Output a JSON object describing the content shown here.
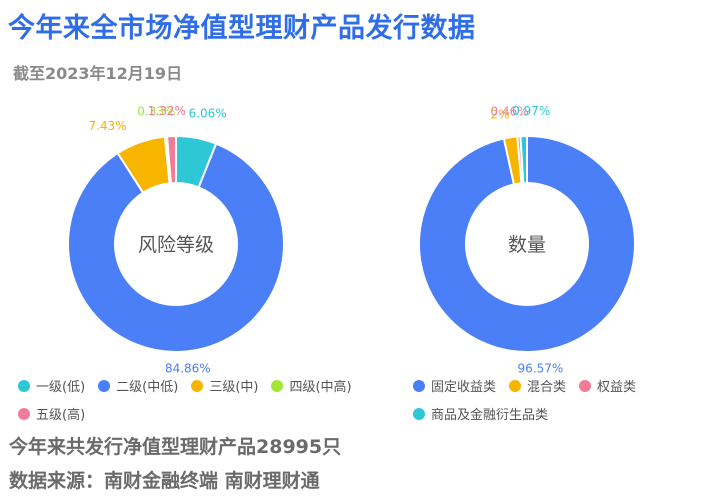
{
  "header": {
    "title": "今年来全市场净值型理财产品发行数据",
    "subtitle": "截至2023年12月19日"
  },
  "chart_data": [
    {
      "type": "pie",
      "title": "风险等级",
      "categories": [
        "一级(低)",
        "二级(中低)",
        "三级(中)",
        "四级(中高)",
        "五级(高)"
      ],
      "values": [
        6.06,
        84.86,
        7.43,
        0.33,
        1.32
      ],
      "value_labels": [
        "6.06%",
        "84.86%",
        "7.43%",
        "0.33%",
        "1.32%"
      ],
      "colors": [
        "#2ec7d6",
        "#4a7ff7",
        "#f7b500",
        "#a3e635",
        "#f07c9a"
      ],
      "legend": "bottom"
    },
    {
      "type": "pie",
      "title": "数量",
      "categories": [
        "固定收益类",
        "混合类",
        "权益类",
        "商品及金融衍生品类"
      ],
      "values": [
        96.57,
        2,
        0.46,
        0.97
      ],
      "value_labels": [
        "96.57%",
        "2%",
        "0.46%",
        "0.97%"
      ],
      "colors": [
        "#4a7ff7",
        "#f7b500",
        "#f07c9a",
        "#2ec7d6"
      ],
      "legend": "bottom"
    }
  ],
  "footer": {
    "total_text": "今年来共发行净值型理财产品28995只",
    "source_text": "数据来源：南财金融终端 南财理财通"
  }
}
